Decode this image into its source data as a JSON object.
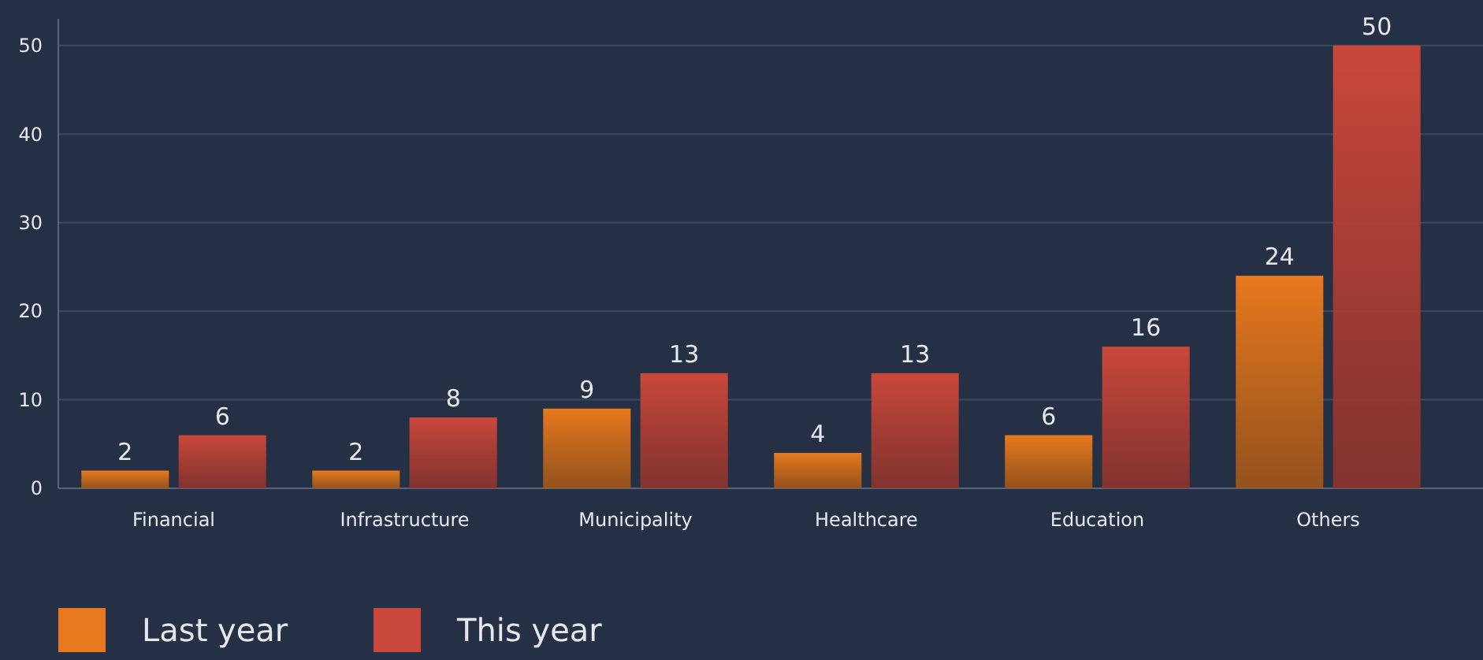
{
  "chart_data": {
    "type": "bar",
    "categories": [
      "Financial",
      "Infrastructure",
      "Municipality",
      "Healthcare",
      "Education",
      "Others"
    ],
    "series": [
      {
        "name": "Last year",
        "color": "#e8791e",
        "values": [
          2,
          2,
          9,
          4,
          6,
          24
        ]
      },
      {
        "name": "This year",
        "color": "#c9473b",
        "values": [
          6,
          8,
          13,
          13,
          16,
          50
        ]
      }
    ],
    "ylim": [
      0,
      53
    ],
    "yticks": [
      0,
      10,
      20,
      30,
      40,
      50
    ],
    "grid": "y",
    "data_labels": true,
    "legend": "bottom left"
  }
}
